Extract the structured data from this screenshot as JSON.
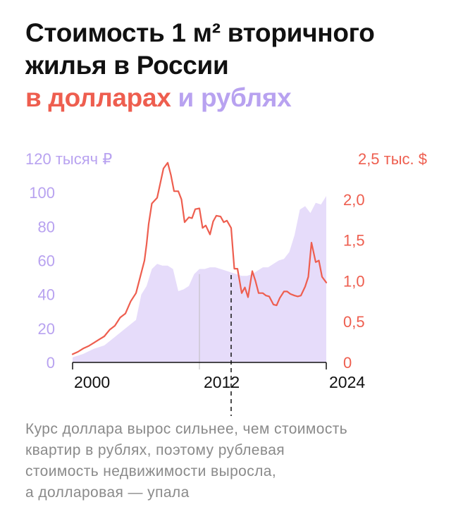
{
  "title": {
    "line1": "Стоимость 1 м² вторичного",
    "line2": "жилья в России"
  },
  "subtitle": {
    "usd": "в долларах",
    "and": " и ",
    "rub": "рублях"
  },
  "caption": {
    "line1": "Курс доллара вырос сильнее, чем стоимость",
    "line2": "квартир в рублях, поэтому рублевая",
    "line3": "стоимость недвижимости выросла,",
    "line4": "а долларовая — упала"
  },
  "colors": {
    "usd": "#ee5e4f",
    "rub_fill": "#e6dcfa",
    "rub_text": "#b8a2f0",
    "axis": "#111111"
  },
  "chart_data": {
    "type": "area",
    "x_ticks": [
      2000,
      2012,
      2024
    ],
    "x_tick_labels": [
      "2000",
      "2012",
      "2024"
    ],
    "xlim": [
      2000,
      2024
    ],
    "left_axis": {
      "ticks": [
        0,
        20,
        40,
        60,
        80,
        100,
        120
      ],
      "tick_labels": [
        "0",
        "20",
        "40",
        "60",
        "80",
        "100",
        "120 тысяч ₽"
      ],
      "ylim": [
        0,
        120
      ]
    },
    "right_axis": {
      "ticks": [
        0,
        0.5,
        1.0,
        1.5,
        2.0,
        2.5
      ],
      "tick_labels": [
        "0",
        "0,5",
        "1,0",
        "1,5",
        "2,0",
        "2,5 тыс. $"
      ],
      "ylim": [
        0,
        2.5
      ]
    },
    "series": [
      {
        "type": "area",
        "axis": "left",
        "x": [
          2000,
          2001,
          2002,
          2003,
          2004,
          2005,
          2006,
          2006.5,
          2007,
          2007.5,
          2008,
          2008.5,
          2009,
          2009.5,
          2010,
          2010.5,
          2011,
          2011.5,
          2012,
          2012.5,
          2013,
          2013.5,
          2014,
          2014.5,
          2015,
          2015.5,
          2016,
          2016.5,
          2017,
          2017.5,
          2018,
          2018.5,
          2019,
          2019.5,
          2020,
          2020.5,
          2021,
          2021.5,
          2022,
          2022.5,
          2023,
          2023.5,
          2024
        ],
        "values": [
          3,
          5,
          8,
          10,
          15,
          20,
          25,
          40,
          45,
          55,
          58,
          57,
          57,
          55,
          42,
          43,
          45,
          52,
          55,
          55,
          56,
          56,
          55,
          54,
          53,
          52,
          51,
          51,
          52,
          54,
          56,
          56,
          58,
          60,
          61,
          65,
          75,
          90,
          92,
          88,
          94,
          93,
          98
        ]
      },
      {
        "type": "line",
        "axis": "right",
        "x": [
          2000,
          2000.5,
          2001,
          2001.5,
          2002,
          2002.5,
          2003,
          2003.5,
          2004,
          2004.5,
          2005,
          2005.5,
          2006,
          2006.5,
          2006.8,
          2007,
          2007.2,
          2007.5,
          2008,
          2008.3,
          2008.6,
          2009,
          2009.3,
          2009.6,
          2010,
          2010.3,
          2010.6,
          2011,
          2011.3,
          2011.6,
          2012,
          2012.3,
          2012.6,
          2013,
          2013.3,
          2013.6,
          2014,
          2014.3,
          2014.6,
          2015,
          2015.3,
          2015.6,
          2016,
          2016.3,
          2016.6,
          2017,
          2017.3,
          2017.6,
          2018,
          2018.3,
          2018.6,
          2019,
          2019.3,
          2019.6,
          2020,
          2020.3,
          2020.6,
          2021,
          2021.3,
          2021.6,
          2022,
          2022.3,
          2022.6,
          2023,
          2023.3,
          2023.6,
          2024
        ],
        "values": [
          0.1,
          0.13,
          0.17,
          0.2,
          0.24,
          0.28,
          0.32,
          0.4,
          0.45,
          0.55,
          0.6,
          0.75,
          0.85,
          1.1,
          1.25,
          1.45,
          1.7,
          1.95,
          2.02,
          2.2,
          2.38,
          2.45,
          2.3,
          2.1,
          2.1,
          2.0,
          1.72,
          1.78,
          1.77,
          1.88,
          1.89,
          1.65,
          1.68,
          1.57,
          1.73,
          1.8,
          1.79,
          1.72,
          1.74,
          1.65,
          1.15,
          1.15,
          0.85,
          0.92,
          0.8,
          1.12,
          1.0,
          0.85,
          0.85,
          0.82,
          0.81,
          0.71,
          0.7,
          0.79,
          0.87,
          0.87,
          0.84,
          0.82,
          0.81,
          0.82,
          0.93,
          1.05,
          1.47,
          1.23,
          1.25,
          1.05,
          0.98
        ]
      }
    ]
  }
}
